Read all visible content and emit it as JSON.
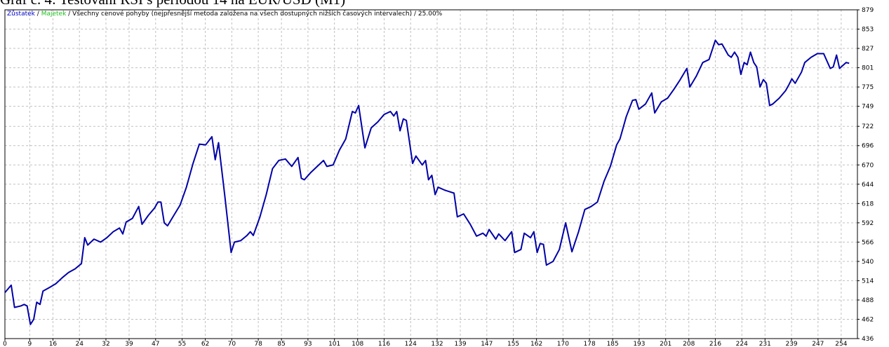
{
  "chart_data": {
    "type": "line",
    "title": "Graf č. 4: Testování RSI s periodou 14 na EUR/USD (M1)",
    "separator": "/",
    "model": "Všechny cenové pohyby (nejpřesnější metoda založena na všech dostupných nižších časových intervalech)",
    "quality": "25.00%",
    "equity": {
      "name": "Majetek",
      "color": "#1fbf1f"
    },
    "series": [
      {
        "name": "Zůstatek",
        "color": "#0000a8",
        "x": [
          1.5,
          3.4,
          4.4,
          6.3,
          7.3,
          8.2,
          9.2,
          10.2,
          11.1,
          12.1,
          13.0,
          15.0,
          16.9,
          18.8,
          20.7,
          22.7,
          24.6,
          25.6,
          26.5,
          28.4,
          30.4,
          32.3,
          34.2,
          36.1,
          37.1,
          38.1,
          40.0,
          41.9,
          42.9,
          44.8,
          46.7,
          47.7,
          48.6,
          49.6,
          50.6,
          52.5,
          54.4,
          56.3,
          58.3,
          60.2,
          62.1,
          64.0,
          65.0,
          66.0,
          67.9,
          69.8,
          70.8,
          72.7,
          74.6,
          75.6,
          76.5,
          78.5,
          80.4,
          82.3,
          84.2,
          86.2,
          88.1,
          90.0,
          91.0,
          91.9,
          93.9,
          95.8,
          97.7,
          98.7,
          100.6,
          102.5,
          104.4,
          106.4,
          107.3,
          108.3,
          110.2,
          112.1,
          114.1,
          116.0,
          117.9,
          118.9,
          119.8,
          120.8,
          121.8,
          122.7,
          124.6,
          125.6,
          127.5,
          128.5,
          129.4,
          130.4,
          131.4,
          132.3,
          134.3,
          137.1,
          138.1,
          140.0,
          142.0,
          143.9,
          145.8,
          146.8,
          147.7,
          149.7,
          150.6,
          152.5,
          154.5,
          155.4,
          157.3,
          158.3,
          160.2,
          161.2,
          162.2,
          163.1,
          164.1,
          165.0,
          167.0,
          168.9,
          170.8,
          172.7,
          174.7,
          176.6,
          178.5,
          180.4,
          182.4,
          184.3,
          186.2,
          187.2,
          189.1,
          191.0,
          192.0,
          192.9,
          194.9,
          196.8,
          197.7,
          199.7,
          201.6,
          203.5,
          205.4,
          207.4,
          208.3,
          210.3,
          212.2,
          214.1,
          216.0,
          217.0,
          218.0,
          219.9,
          220.8,
          221.8,
          222.8,
          223.7,
          224.7,
          225.6,
          226.6,
          227.6,
          228.5,
          229.5,
          230.5,
          231.4,
          232.4,
          233.3,
          235.3,
          237.2,
          238.2,
          239.1,
          240.1,
          242.0,
          243.0,
          244.9,
          246.8,
          248.7,
          250.7,
          251.6,
          252.6,
          253.5,
          255.5,
          256.4
        ],
        "values": [
          498,
          508,
          478,
          480,
          482,
          480,
          455,
          462,
          485,
          482,
          500,
          505,
          510,
          518,
          525,
          530,
          537,
          572,
          562,
          570,
          566,
          572,
          580,
          585,
          577,
          593,
          598,
          614,
          590,
          602,
          612,
          620,
          620,
          592,
          588,
          602,
          616,
          640,
          672,
          698,
          697,
          708,
          677,
          700,
          628,
          552,
          566,
          568,
          575,
          580,
          575,
          600,
          630,
          665,
          676,
          678,
          668,
          680,
          652,
          650,
          660,
          668,
          676,
          668,
          670,
          690,
          705,
          742,
          740,
          750,
          693,
          720,
          728,
          738,
          742,
          736,
          742,
          716,
          732,
          730,
          672,
          682,
          670,
          676,
          650,
          656,
          630,
          640,
          636,
          632,
          600,
          604,
          590,
          574,
          578,
          574,
          583,
          570,
          577,
          568,
          580,
          552,
          556,
          578,
          572,
          580,
          552,
          564,
          563,
          535,
          540,
          556,
          592,
          553,
          580,
          610,
          614,
          620,
          648,
          668,
          697,
          705,
          735,
          757,
          758,
          745,
          752,
          767,
          740,
          755,
          760,
          772,
          785,
          800,
          775,
          790,
          808,
          812,
          838,
          832,
          833,
          818,
          815,
          822,
          815,
          792,
          808,
          805,
          822,
          808,
          802,
          775,
          785,
          780,
          750,
          752,
          760,
          770,
          778,
          786,
          780,
          795,
          808,
          815,
          820,
          820,
          800,
          802,
          818,
          800,
          808,
          807
        ]
      }
    ],
    "xlim": [
      1.5,
      258.9
    ],
    "ylim": [
      436,
      879
    ],
    "xticks": [
      0,
      9,
      16,
      24,
      32,
      39,
      47,
      55,
      62,
      70,
      78,
      85,
      93,
      101,
      108,
      116,
      124,
      132,
      139,
      147,
      155,
      162,
      170,
      178,
      185,
      193,
      201,
      208,
      216,
      224,
      231,
      239,
      247,
      254
    ],
    "yticks": [
      436,
      462,
      488,
      514,
      540,
      566,
      592,
      618,
      644,
      670,
      696,
      722,
      749,
      775,
      801,
      827,
      853,
      879
    ],
    "grid": true
  }
}
